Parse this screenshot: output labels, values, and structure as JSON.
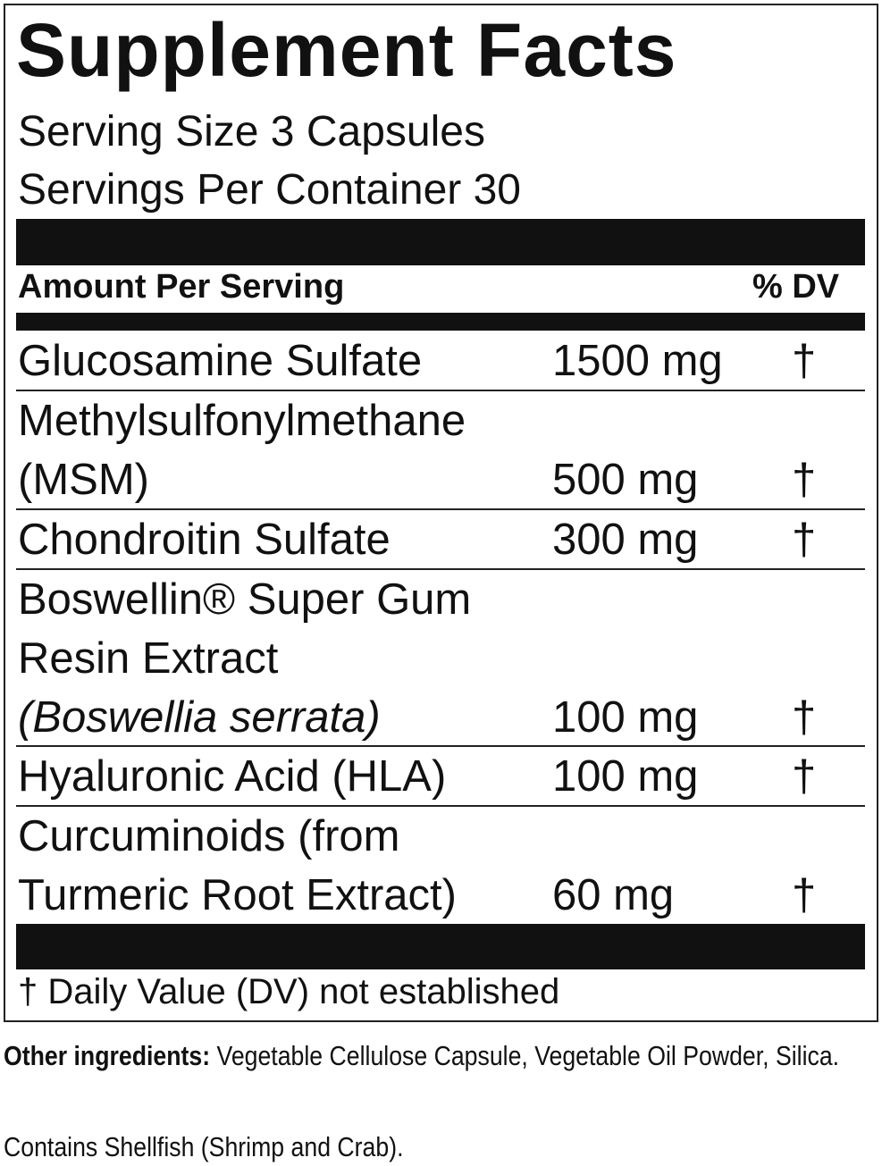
{
  "header": {
    "title": "Supplement Facts",
    "serving_size": "Serving Size 3 Capsules",
    "servings_per_container": "Servings Per Container 30"
  },
  "table": {
    "columns": [
      "Amount Per Serving",
      "% DV"
    ],
    "rows": [
      {
        "name": [
          "Glucosamine Sulfate"
        ],
        "amount": "1500 mg",
        "dv": "†"
      },
      {
        "name": [
          "Methylsulfonylmethane",
          "(MSM)"
        ],
        "amount": "500 mg",
        "dv": "†"
      },
      {
        "name": [
          "Chondroitin Sulfate"
        ],
        "amount": "300 mg",
        "dv": "†"
      },
      {
        "name": [
          "Boswellin® Super Gum",
          "Resin Extract",
          "(Boswellia serrata)"
        ],
        "amount": "100 mg",
        "dv": "†"
      },
      {
        "name": [
          "Hyaluronic Acid (HLA)"
        ],
        "amount": "100 mg",
        "dv": "†"
      },
      {
        "name": [
          "Curcuminoids (from",
          "Turmeric Root Extract)"
        ],
        "amount": "60 mg",
        "dv": "†"
      }
    ],
    "footnote": "† Daily Value (DV) not established"
  },
  "other_ingredients": {
    "label": "Other ingredients:",
    "text": "Vegetable Cellulose Capsule, Vegetable Oil Powder, Silica."
  },
  "allergens": "Contains Shellfish (Shrimp and Crab)."
}
